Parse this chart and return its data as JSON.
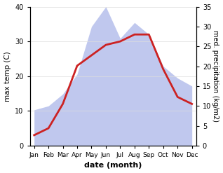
{
  "months": [
    "Jan",
    "Feb",
    "Mar",
    "Apr",
    "May",
    "Jun",
    "Jul",
    "Aug",
    "Sep",
    "Oct",
    "Nov",
    "Dec"
  ],
  "temperature": [
    3,
    5,
    12,
    23,
    26,
    29,
    30,
    32,
    32,
    22,
    14,
    12
  ],
  "precipitation": [
    9,
    10,
    13,
    18,
    30,
    35,
    27,
    31,
    28,
    20,
    17,
    15
  ],
  "temp_color": "#cc2222",
  "precip_color": "#c0c8ee",
  "title": "",
  "xlabel": "date (month)",
  "ylabel_left": "max temp (C)",
  "ylabel_right": "med. precipitation (kg/m2)",
  "ylim_left": [
    0,
    40
  ],
  "ylim_right": [
    0,
    35
  ],
  "yticks_left": [
    0,
    10,
    20,
    30,
    40
  ],
  "yticks_right": [
    0,
    5,
    10,
    15,
    20,
    25,
    30,
    35
  ],
  "bg_color": "#ffffff",
  "line_width": 2.0,
  "figsize": [
    3.18,
    2.47
  ],
  "dpi": 100
}
